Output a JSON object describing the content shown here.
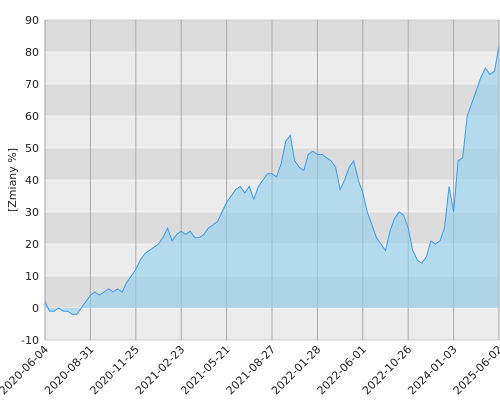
{
  "chart_data": {
    "type": "area",
    "y_label": "[Zmiany %]",
    "categories": [
      "2020-06-04",
      null,
      null,
      null,
      null,
      null,
      null,
      null,
      null,
      null,
      "2020-08-31",
      null,
      null,
      null,
      null,
      null,
      null,
      null,
      null,
      null,
      "2020-11-25",
      null,
      null,
      null,
      null,
      null,
      null,
      null,
      null,
      null,
      "2021-02-23",
      null,
      null,
      null,
      null,
      null,
      null,
      null,
      null,
      null,
      "2021-05-21",
      null,
      null,
      null,
      null,
      null,
      null,
      null,
      null,
      null,
      "2021-08-27",
      null,
      null,
      null,
      null,
      null,
      null,
      null,
      null,
      null,
      "2022-01-28",
      null,
      null,
      null,
      null,
      null,
      null,
      null,
      null,
      null,
      "2022-06-01",
      null,
      null,
      null,
      null,
      null,
      null,
      null,
      null,
      null,
      "2022-10-26",
      null,
      null,
      null,
      null,
      null,
      null,
      null,
      null,
      null,
      "2024-01-03",
      null,
      null,
      null,
      null,
      null,
      null,
      null,
      null,
      null,
      "2025-06-02"
    ],
    "values": [
      2,
      -1,
      -1,
      0,
      -1,
      -1,
      -2,
      -2,
      0,
      2,
      4,
      5,
      4,
      5,
      6,
      5,
      6,
      5,
      8,
      10,
      12,
      15,
      17,
      18,
      19,
      20,
      22,
      25,
      21,
      23,
      24,
      23,
      24,
      22,
      22,
      23,
      25,
      26,
      27,
      30,
      33,
      35,
      37,
      38,
      36,
      38,
      34,
      38,
      40,
      42,
      42,
      41,
      45,
      52,
      54,
      46,
      44,
      43,
      48,
      49,
      48,
      48,
      47,
      46,
      44,
      37,
      40,
      44,
      46,
      40,
      36,
      30,
      26,
      22,
      20,
      18,
      24,
      28,
      30,
      29,
      25,
      18,
      15,
      14,
      16,
      21,
      20,
      21,
      25,
      38,
      30,
      46,
      47,
      60,
      64,
      68,
      72,
      75,
      73,
      74,
      82
    ],
    "color": "#3d9be9",
    "fill": "#8fd0ee",
    "ylim": [
      -10,
      90
    ],
    "yticks": [
      -10,
      0,
      10,
      20,
      30,
      40,
      50,
      60,
      70,
      80,
      90
    ],
    "grid": true
  }
}
